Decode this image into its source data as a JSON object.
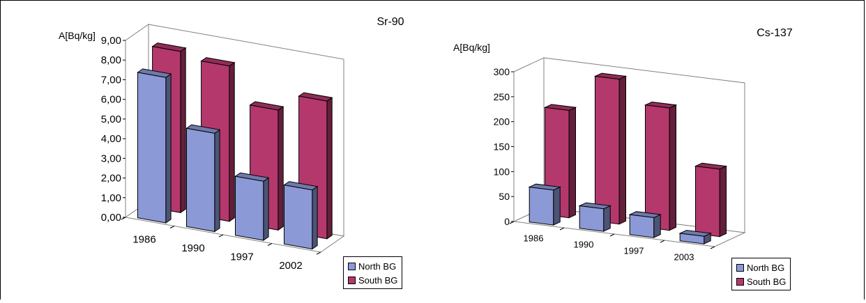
{
  "chart_data": [
    {
      "type": "bar",
      "title": "Sr-90",
      "ylabel": "A[Bq/kg]",
      "xlabel": "",
      "categories": [
        "1986",
        "1990",
        "1997",
        "2002"
      ],
      "ylim": [
        0,
        9
      ],
      "yticks": [
        "0,00",
        "1,00",
        "2,00",
        "3,00",
        "4,00",
        "5,00",
        "6,00",
        "7,00",
        "8,00",
        "9,00"
      ],
      "series": [
        {
          "name": "North BG",
          "values": [
            7.4,
            5.0,
            3.0,
            3.0
          ],
          "color": "#8b99d6"
        },
        {
          "name": "South BG",
          "values": [
            8.2,
            7.9,
            6.1,
            7.0
          ],
          "color": "#b4386c"
        }
      ],
      "grid": false,
      "legend": "bottom-right"
    },
    {
      "type": "bar",
      "title": "Cs-137",
      "ylabel": "A[Bq/kg]",
      "xlabel": "",
      "categories": [
        "1986",
        "1990",
        "1997",
        "2003"
      ],
      "ylim": [
        0,
        300
      ],
      "yticks": [
        "0",
        "50",
        "100",
        "150",
        "200",
        "250",
        "300"
      ],
      "series": [
        {
          "name": "North BG",
          "values": [
            70,
            45,
            40,
            15
          ],
          "color": "#8b99d6"
        },
        {
          "name": "South BG",
          "values": [
            215,
            290,
            245,
            135
          ],
          "color": "#b4386c"
        }
      ],
      "grid": false,
      "legend": "bottom-right"
    }
  ]
}
